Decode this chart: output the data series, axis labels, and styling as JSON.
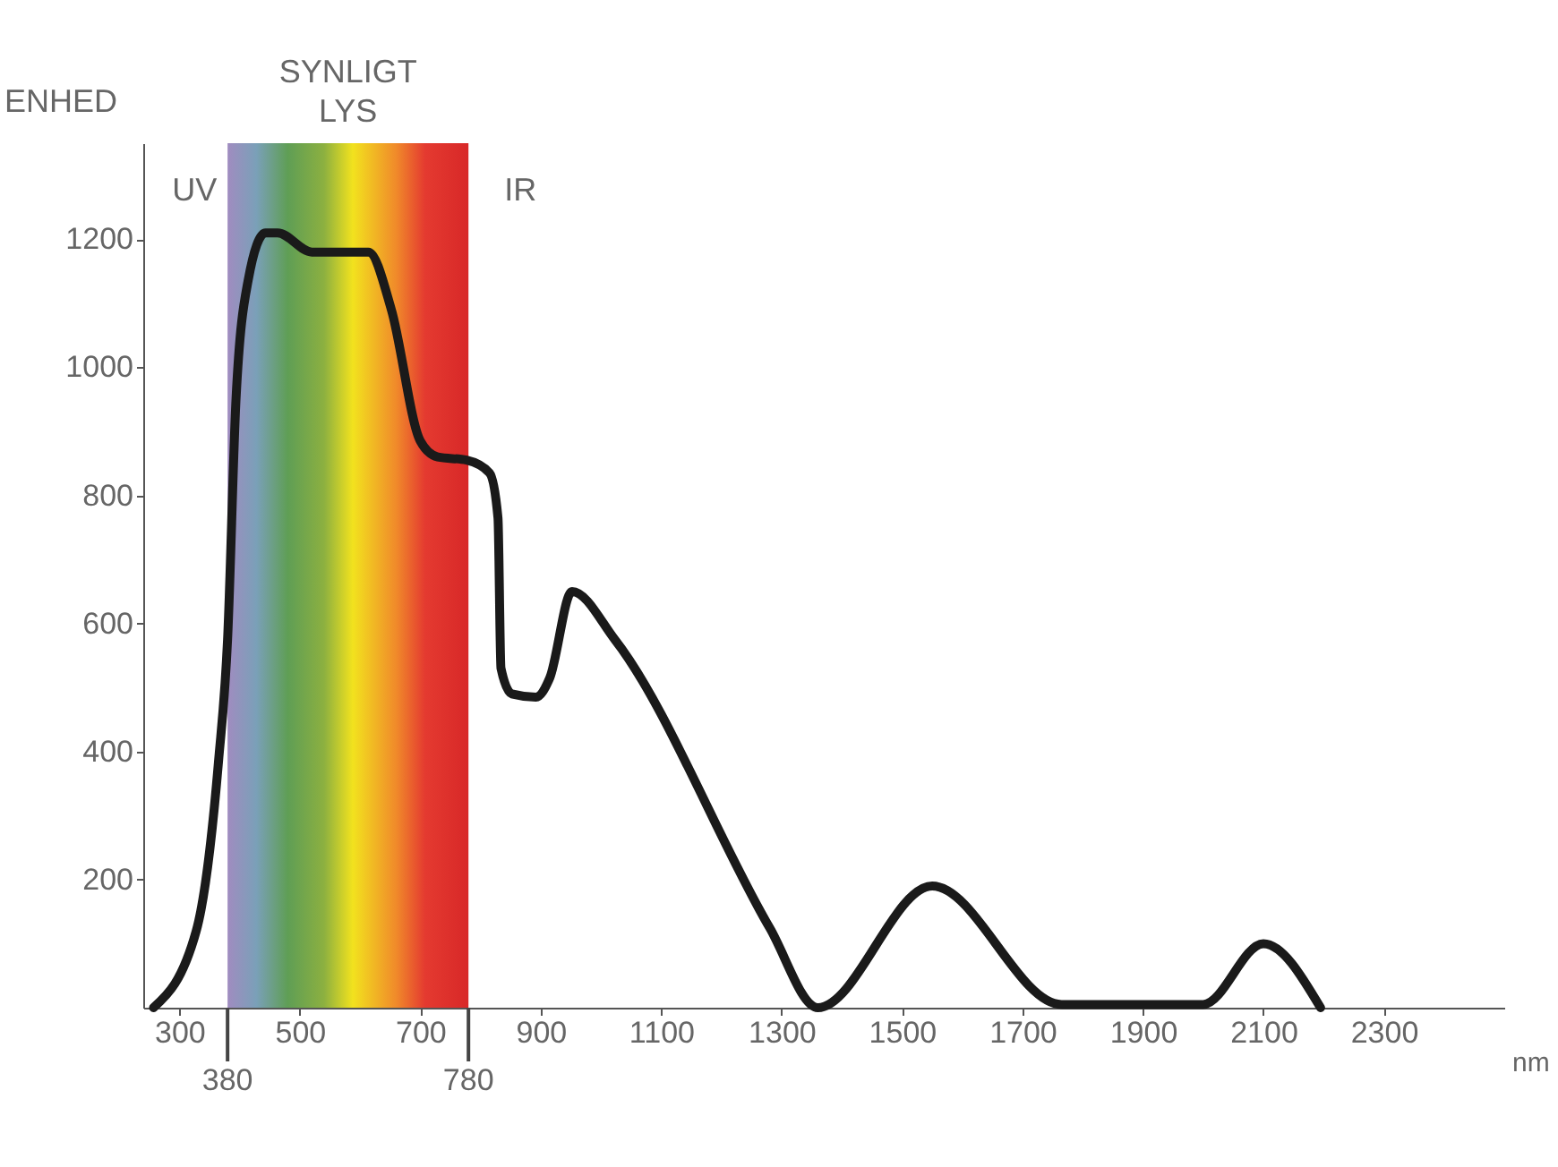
{
  "chart_data": {
    "type": "line",
    "xlabel": "nm",
    "ylabel": "ENHED",
    "x": [
      257,
      328,
      365,
      380,
      394,
      414,
      443,
      463,
      520,
      586,
      614,
      652,
      700,
      729,
      777,
      815,
      829,
      834,
      852,
      892,
      915,
      952,
      1023,
      1280,
      1360,
      1550,
      1765,
      2000,
      2100,
      2195
    ],
    "series": [
      {
        "color": "#1a1a1a",
        "values": [
          0,
          120,
          385,
          575,
          950,
          1135,
          1210,
          1210,
          1180,
          1180,
          1180,
          1090,
          885,
          860,
          855,
          835,
          765,
          530,
          490,
          485,
          515,
          650,
          575,
          125,
          0,
          190,
          5,
          5,
          100,
          0
        ]
      }
    ],
    "xlim": [
      240,
      2500
    ],
    "xticks": [
      300,
      500,
      700,
      900,
      1100,
      1300,
      1500,
      1700,
      1900,
      2100,
      2300
    ],
    "ylim": [
      0,
      1350
    ],
    "yticks": [
      200,
      400,
      600,
      800,
      1000,
      1200
    ],
    "bands": [
      {
        "axis": "x",
        "from": 380,
        "to": 780,
        "label": "SYNLIGT LYS"
      }
    ],
    "annotations": [
      "UV",
      "IR",
      {
        "text": "380",
        "x": 380
      },
      {
        "text": "780",
        "x": 780
      }
    ],
    "grid": false,
    "marker": "none",
    "line_style": "solid"
  }
}
